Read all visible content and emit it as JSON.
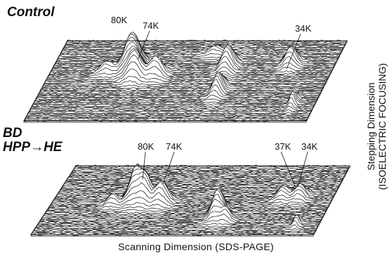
{
  "panels": [
    {
      "title_lines": [
        "Control"
      ],
      "peak_labels": [
        "80K",
        "74K",
        "34K"
      ]
    },
    {
      "title_lines": [
        "BD",
        "HPP→HE"
      ],
      "peak_labels": [
        "80K",
        "74K",
        "37K",
        "34K"
      ]
    }
  ],
  "axes": {
    "x_label": "Scanning Dimension (SDS-PAGE)",
    "y_label_line1": "Stepping Dimension",
    "y_label_line2": "(ISOELECTRIC FOCUSING)"
  },
  "colors": {
    "ink": "#111111",
    "background": "#ffffff"
  }
}
